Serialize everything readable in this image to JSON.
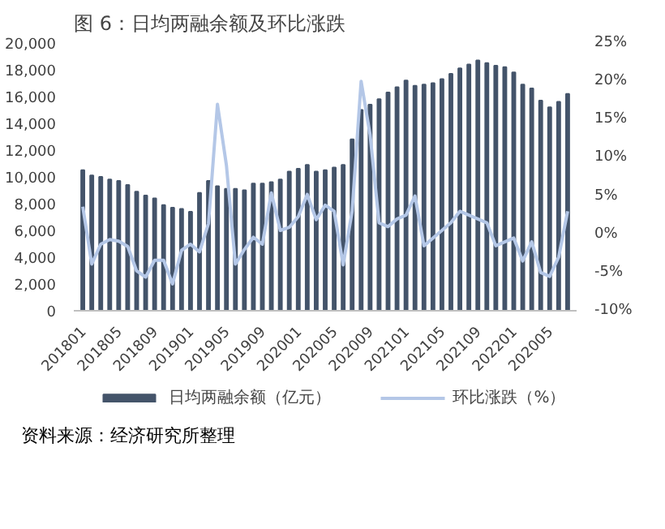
{
  "chart_data": {
    "type": "bar",
    "title": "图 6：日均两融余额及环比涨跌",
    "categories": [
      "201801",
      null,
      null,
      null,
      "201805",
      null,
      null,
      null,
      "201809",
      null,
      null,
      null,
      "201901",
      null,
      null,
      null,
      "201905",
      null,
      null,
      null,
      "201909",
      null,
      null,
      null,
      "202001",
      null,
      null,
      null,
      "202005",
      null,
      null,
      null,
      "202009",
      null,
      null,
      null,
      "202101",
      null,
      null,
      null,
      "202105",
      null,
      null,
      null,
      "202109",
      null,
      null,
      null,
      "202201",
      null,
      null,
      null,
      "202005",
      null,
      null
    ],
    "series": [
      {
        "name": "日均两融余额（亿元）",
        "color": "#44546a",
        "values": [
          10500,
          10100,
          10000,
          9800,
          9700,
          9400,
          8900,
          8600,
          8400,
          7900,
          7700,
          7600,
          7400,
          8800,
          9700,
          9300,
          9100,
          9100,
          9000,
          9500,
          9500,
          9600,
          9800,
          10400,
          10600,
          10900,
          10400,
          10500,
          10700,
          10900,
          12800,
          15000,
          15400,
          15800,
          16300,
          16700,
          17200,
          16800,
          16900,
          17000,
          17300,
          17700,
          18100,
          18400,
          18700,
          18500,
          18300,
          18200,
          17800,
          16900,
          16600,
          15700,
          15200,
          15600,
          16200
        ]
      },
      {
        "name": "环比涨跌（%）",
        "type": "line",
        "axis": "y2",
        "color": "#b4c7e7",
        "values": [
          3.6,
          -3.9,
          -1.3,
          -0.7,
          -0.9,
          -1.6,
          -4.8,
          -5.6,
          -3.4,
          -3.4,
          -6.5,
          -2.1,
          -1.3,
          -2.3,
          1.4,
          17,
          9,
          -3.9,
          -2,
          -0.4,
          -1.3,
          5.4,
          0.5,
          0.9,
          2.3,
          5.2,
          1.9,
          3.8,
          3,
          -4,
          3,
          20,
          13,
          1.5,
          1,
          2,
          2.5,
          5,
          -1.5,
          -0.5,
          0.5,
          1.5,
          3,
          2.5,
          2,
          1.5,
          -1.5,
          -1,
          -0.5,
          -3.5,
          -1,
          -5,
          -5.5,
          -3,
          3
        ]
      }
    ],
    "ylim": [
      0,
      20000
    ],
    "yticks": [
      0,
      {
        "value": 2000,
        "label": "2,000"
      },
      {
        "value": 4000,
        "label": "4,000"
      },
      {
        "value": 6000,
        "label": "6,000"
      },
      {
        "value": 8000,
        "label": "8,000"
      },
      {
        "value": 10000,
        "label": "10,000"
      },
      {
        "value": 12000,
        "label": "12,000"
      },
      {
        "value": 14000,
        "label": "14,000"
      },
      {
        "value": 16000,
        "label": "16,000"
      },
      {
        "value": 18000,
        "label": "18,000"
      },
      {
        "value": 20000,
        "label": "20,000"
      }
    ],
    "y2lim": [
      -10,
      25
    ],
    "y2ticks": [
      {
        "value": -10,
        "label": "-10%"
      },
      {
        "value": -5,
        "label": "-5%"
      },
      {
        "value": 0,
        "label": "0%"
      },
      {
        "value": 5,
        "label": "5%"
      },
      {
        "value": 10,
        "label": "10%"
      },
      {
        "value": 15,
        "label": "15%"
      },
      {
        "value": 20,
        "label": "20%"
      },
      {
        "value": 25,
        "label": "25%"
      }
    ],
    "legend": "bottom",
    "annotations": [
      "资料来源：经济研究所整理"
    ]
  }
}
